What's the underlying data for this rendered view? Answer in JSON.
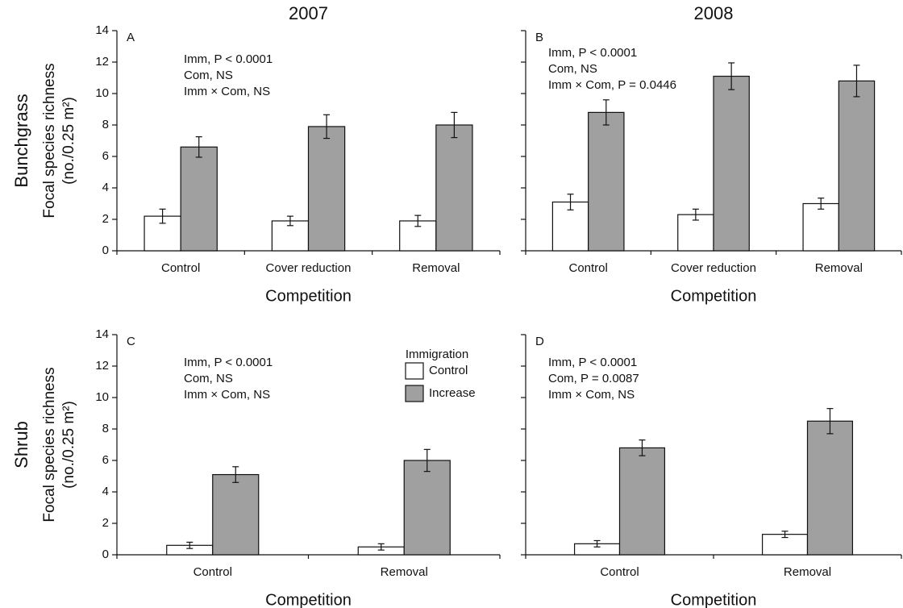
{
  "chart_data": [
    {
      "type": "bar",
      "panel": "A",
      "title": "2007",
      "row_label": "Bunchgrass",
      "ylabel": [
        "Focal species richness",
        "(no./0.25 m²)"
      ],
      "xlabel": "Competition",
      "categories": [
        "Control",
        "Cover reduction",
        "Removal"
      ],
      "series": [
        {
          "color": "#ffffff",
          "values": [
            2.2,
            1.9,
            1.9
          ],
          "errors": [
            0.45,
            0.3,
            0.35
          ]
        },
        {
          "color": "#a0a0a0",
          "values": [
            6.6,
            7.9,
            8.0
          ],
          "errors": [
            0.65,
            0.75,
            0.8
          ]
        }
      ],
      "ylim": [
        0,
        14
      ],
      "yticks": [
        0,
        2,
        4,
        6,
        8,
        10,
        12,
        14
      ],
      "ytick_labels": true,
      "annotations": [
        "Imm, P < 0.0001",
        "Com, NS",
        "Imm × Com, NS"
      ]
    },
    {
      "type": "bar",
      "panel": "B",
      "title": "2008",
      "xlabel": "Competition",
      "categories": [
        "Control",
        "Cover reduction",
        "Removal"
      ],
      "series": [
        {
          "color": "#ffffff",
          "values": [
            3.1,
            2.3,
            3.0
          ],
          "errors": [
            0.5,
            0.35,
            0.35
          ]
        },
        {
          "color": "#a0a0a0",
          "values": [
            8.8,
            11.1,
            10.8
          ],
          "errors": [
            0.8,
            0.85,
            1.0
          ]
        }
      ],
      "ylim": [
        0,
        14
      ],
      "yticks": [
        0,
        2,
        4,
        6,
        8,
        10,
        12,
        14
      ],
      "ytick_labels": false,
      "annotations": [
        "Imm, P < 0.0001",
        "Com, NS",
        "Imm × Com, P = 0.0446"
      ]
    },
    {
      "type": "bar",
      "panel": "C",
      "row_label": "Shrub",
      "ylabel": [
        "Focal species richness",
        "(no./0.25 m²)"
      ],
      "xlabel": "Competition",
      "categories": [
        "Control",
        "Removal"
      ],
      "series": [
        {
          "name": "Control",
          "color": "#ffffff",
          "values": [
            0.6,
            0.5
          ],
          "errors": [
            0.2,
            0.2
          ]
        },
        {
          "name": "Increase",
          "color": "#a0a0a0",
          "values": [
            5.1,
            6.0
          ],
          "errors": [
            0.5,
            0.7
          ]
        }
      ],
      "ylim": [
        0,
        14
      ],
      "yticks": [
        0,
        2,
        4,
        6,
        8,
        10,
        12,
        14
      ],
      "ytick_labels": true,
      "legend": true,
      "legend_title": "Immigration",
      "annotations": [
        "Imm, P < 0.0001",
        "Com, NS",
        "Imm × Com, NS"
      ]
    },
    {
      "type": "bar",
      "panel": "D",
      "xlabel": "Competition",
      "categories": [
        "Control",
        "Removal"
      ],
      "series": [
        {
          "color": "#ffffff",
          "values": [
            0.7,
            1.3
          ],
          "errors": [
            0.2,
            0.2
          ]
        },
        {
          "color": "#a0a0a0",
          "values": [
            6.8,
            8.5
          ],
          "errors": [
            0.5,
            0.8
          ]
        }
      ],
      "ylim": [
        0,
        14
      ],
      "yticks": [
        0,
        2,
        4,
        6,
        8,
        10,
        12,
        14
      ],
      "ytick_labels": false,
      "annotations": [
        "Imm, P < 0.0001",
        "Com, P = 0.0087",
        "Imm × Com, NS"
      ]
    }
  ]
}
